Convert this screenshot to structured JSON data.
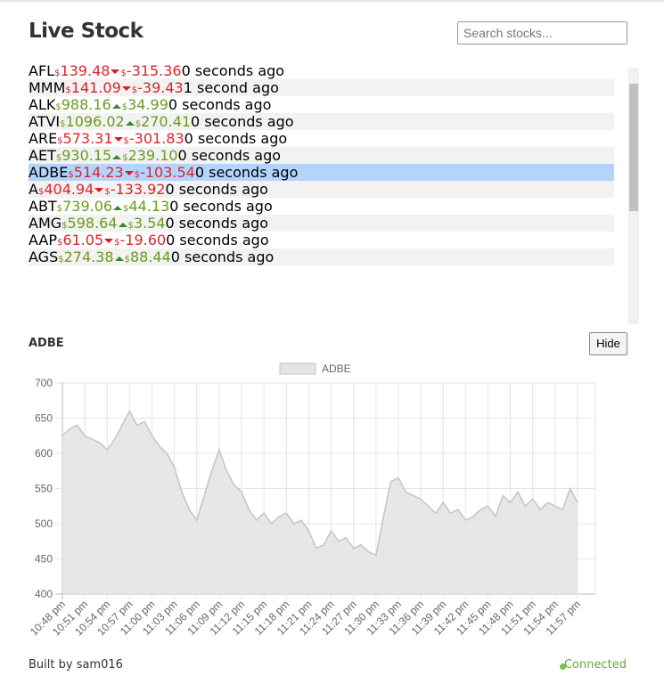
{
  "header": {
    "title": "Live Stock",
    "search_placeholder": "Search stocks..."
  },
  "currency": "$",
  "selected_row": 6,
  "stocks": [
    {
      "symbol": "AFL",
      "price": "139.48",
      "change": "-315.36",
      "direction": "down",
      "updated": "0 seconds ago"
    },
    {
      "symbol": "MMM",
      "price": "141.09",
      "change": "-39.43",
      "direction": "down",
      "updated": "1 second ago"
    },
    {
      "symbol": "ALK",
      "price": "988.16",
      "change": "34.99",
      "direction": "up",
      "updated": "0 seconds ago"
    },
    {
      "symbol": "ATVI",
      "price": "1096.02",
      "change": "270.41",
      "direction": "up",
      "updated": "0 seconds ago"
    },
    {
      "symbol": "ARE",
      "price": "573.31",
      "change": "-301.83",
      "direction": "down",
      "updated": "0 seconds ago"
    },
    {
      "symbol": "AET",
      "price": "930.15",
      "change": "239.10",
      "direction": "up",
      "updated": "0 seconds ago"
    },
    {
      "symbol": "ADBE",
      "price": "514.23",
      "change": "-103.54",
      "direction": "down",
      "updated": "0 seconds ago"
    },
    {
      "symbol": "A",
      "price": "404.94",
      "change": "-133.92",
      "direction": "down",
      "updated": "0 seconds ago"
    },
    {
      "symbol": "ABT",
      "price": "739.06",
      "change": "44.13",
      "direction": "up",
      "updated": "0 seconds ago"
    },
    {
      "symbol": "AMG",
      "price": "598.64",
      "change": "3.54",
      "direction": "up",
      "updated": "0 seconds ago"
    },
    {
      "symbol": "AAP",
      "price": "61.05",
      "change": "-19.60",
      "direction": "down",
      "updated": "0 seconds ago"
    },
    {
      "symbol": "AGS",
      "price": "274.38",
      "change": "88.44",
      "direction": "up",
      "updated": "0 seconds ago"
    }
  ],
  "detail": {
    "symbol": "ADBE",
    "hide_button": "Hide"
  },
  "chart_data": {
    "type": "line",
    "categories": [
      "10:48 pm",
      null,
      null,
      "10:51 pm",
      null,
      null,
      "10:54 pm",
      null,
      null,
      "10:57 pm",
      null,
      null,
      "11:00 pm",
      null,
      null,
      "11:03 pm",
      null,
      null,
      "11:06 pm",
      null,
      null,
      "11:09 pm",
      null,
      null,
      "11:12 pm",
      null,
      null,
      "11:15 pm",
      null,
      null,
      "11:18 pm",
      null,
      null,
      "11:21 pm",
      null,
      null,
      "11:24 pm",
      null,
      null,
      "11:27 pm",
      null,
      null,
      "11:30 pm",
      null,
      null,
      "11:33 pm",
      null,
      null,
      "11:36 pm",
      null,
      null,
      "11:39 pm",
      null,
      null,
      "11:42 pm",
      null,
      null,
      "11:45 pm",
      null,
      null,
      "11:48 pm",
      null,
      null,
      "11:51 pm",
      null,
      null,
      "11:54 pm",
      null,
      null,
      "11:57 pm"
    ],
    "series": [
      {
        "name": "ADBE",
        "color": "#e4e4e4",
        "line_color": "#c4c4c4",
        "values": [
          625,
          635,
          640,
          625,
          620,
          615,
          605,
          620,
          640,
          660,
          640,
          645,
          625,
          610,
          600,
          580,
          545,
          520,
          505,
          540,
          575,
          605,
          575,
          555,
          545,
          520,
          505,
          515,
          500,
          510,
          515,
          500,
          505,
          490,
          465,
          470,
          490,
          475,
          480,
          465,
          470,
          460,
          455,
          510,
          560,
          565,
          545,
          540,
          535,
          525,
          515,
          530,
          515,
          520,
          505,
          510,
          520,
          525,
          510,
          540,
          530,
          545,
          525,
          535,
          520,
          530,
          525,
          520,
          550,
          530
        ]
      }
    ],
    "ylim": [
      400,
      700
    ],
    "yticks": [
      400,
      450,
      500,
      550,
      600,
      650,
      700
    ],
    "grid": true
  },
  "footer": {
    "credit": "Built by sam016",
    "status": "Connected"
  }
}
